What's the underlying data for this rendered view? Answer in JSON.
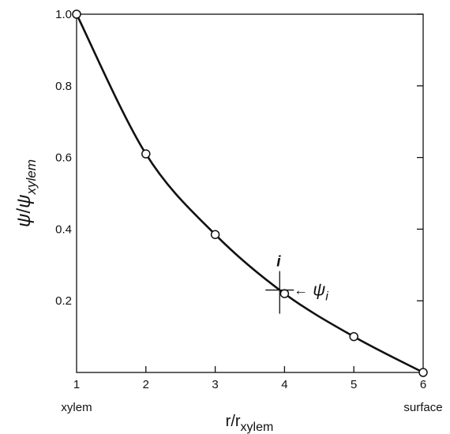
{
  "chart_data": {
    "type": "line",
    "xlabel": {
      "main": "r/r",
      "sub": "xylem"
    },
    "ylabel": {
      "psi": "ψ",
      "slash": "/",
      "psi2": "ψ",
      "sub": "xylem"
    },
    "xlim": [
      1,
      6
    ],
    "ylim": [
      0,
      1.0
    ],
    "x_ticks": [
      "1",
      "2",
      "3",
      "4",
      "5",
      "6"
    ],
    "y_ticks": [
      {
        "value": 0.2,
        "label": "0.2"
      },
      {
        "value": 0.4,
        "label": "0.4"
      },
      {
        "value": 0.6,
        "label": "0.6"
      },
      {
        "value": 0.8,
        "label": "0.8"
      },
      {
        "value": 1.0,
        "label": "1.0"
      }
    ],
    "x_end_labels": {
      "left": "xylem",
      "right": "surface"
    },
    "series": [
      {
        "x": [
          1,
          2,
          3,
          4,
          5,
          6
        ],
        "y": [
          1.0,
          0.61,
          0.385,
          0.22,
          0.1,
          0.0
        ]
      }
    ],
    "annotation": {
      "x": 3.93,
      "y": 0.23,
      "label_i": "i",
      "label_psi": "ψ",
      "label_psi_sub": "i",
      "arrow": "←"
    }
  }
}
